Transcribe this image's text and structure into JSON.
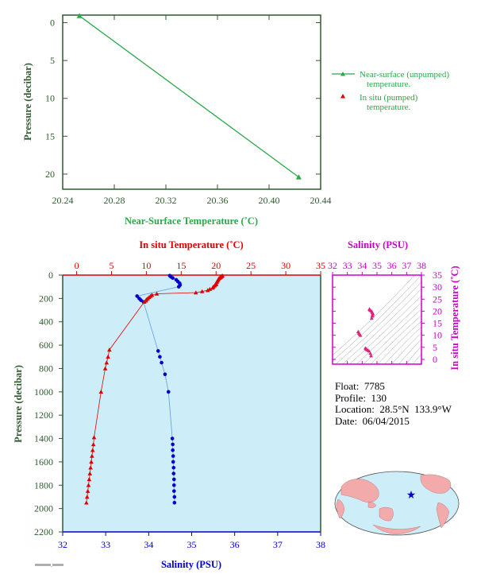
{
  "colors": {
    "green": "#2aa84a",
    "red": "#e00000",
    "blue": "#0000cc",
    "magenta": "#cc00cc",
    "darkgreen": "#2f5a2f",
    "panel_bg": "#cdeef8",
    "map_land": "#f2aaaa",
    "map_ocean": "#cdeef8"
  },
  "info": {
    "float_label": "Float:",
    "float": "7785",
    "profile_label": "Profile:",
    "profile": "130",
    "location_label": "Location:",
    "location": "28.5°N  133.9°W",
    "date_label": "Date:",
    "date": "06/04/2015"
  },
  "footer_tiny": "0000000000_0000000",
  "chart_data": [
    {
      "type": "line",
      "xlabel": "Near-Surface Temperature (˚C)",
      "ylabel": "Pressure (decibar)",
      "xlim": [
        20.24,
        20.44
      ],
      "ylim": [
        22,
        -1
      ],
      "xticks": [
        "20.24",
        "20.28",
        "20.32",
        "20.36",
        "20.40",
        "20.44"
      ],
      "yticks": [
        "0",
        "5",
        "10",
        "15",
        "20"
      ],
      "legend_position": "right",
      "series": [
        {
          "name": "Near-surface (unpumped) temperature.",
          "x": [
            20.253,
            20.423
          ],
          "y": [
            -0.9,
            20.4
          ]
        },
        {
          "name": "In situ (pumped) temperature.",
          "x": [],
          "y": []
        }
      ]
    },
    {
      "type": "scatter",
      "top_xlabel": "In situ Temperature (˚C)",
      "bottom_xlabel": "Salinity (PSU)",
      "ylabel": "Pressure (decibar)",
      "temp_lim": [
        -2,
        35
      ],
      "sal_lim": [
        32,
        38
      ],
      "pres_lim": [
        2200,
        0
      ],
      "temp_ticks": [
        "0",
        "5",
        "10",
        "15",
        "20",
        "25",
        "30",
        "35"
      ],
      "sal_ticks": [
        "32",
        "33",
        "34",
        "35",
        "36",
        "37",
        "38"
      ],
      "pres_ticks": [
        "0",
        "200",
        "400",
        "600",
        "800",
        "1000",
        "1200",
        "1400",
        "1600",
        "1800",
        "2000",
        "2200"
      ],
      "temperature": {
        "pressure": [
          5,
          10,
          15,
          20,
          25,
          30,
          40,
          50,
          60,
          70,
          80,
          90,
          100,
          110,
          120,
          130,
          140,
          150,
          160,
          170,
          180,
          190,
          200,
          210,
          220,
          230,
          640,
          700,
          750,
          800,
          1000,
          1390,
          1450,
          1500,
          1550,
          1600,
          1650,
          1700,
          1750,
          1800,
          1850,
          1900,
          1950
        ],
        "value": [
          20.9,
          20.8,
          20.7,
          20.6,
          20.5,
          20.4,
          20.3,
          20.2,
          20.1,
          20.0,
          20.0,
          19.8,
          19.6,
          19.5,
          19.1,
          18.8,
          18.0,
          17.1,
          11.5,
          10.8,
          10.6,
          10.4,
          10.2,
          10.0,
          9.9,
          9.7,
          4.7,
          4.5,
          4.3,
          4.1,
          3.5,
          2.5,
          2.4,
          2.3,
          2.2,
          2.1,
          2.0,
          1.9,
          1.8,
          1.7,
          1.6,
          1.5,
          1.4
        ]
      },
      "salinity": {
        "pressure": [
          5,
          15,
          25,
          40,
          55,
          70,
          85,
          100,
          180,
          200,
          215,
          230,
          650,
          700,
          750,
          850,
          1000,
          1400,
          1450,
          1500,
          1550,
          1600,
          1650,
          1700,
          1750,
          1800,
          1850,
          1900,
          1950
        ],
        "value": [
          34.49,
          34.52,
          34.56,
          34.64,
          34.68,
          34.72,
          34.73,
          34.7,
          33.73,
          33.78,
          33.82,
          33.88,
          34.22,
          34.26,
          34.3,
          34.38,
          34.46,
          34.55,
          34.56,
          34.56,
          34.57,
          34.57,
          34.58,
          34.58,
          34.59,
          34.59,
          34.59,
          34.6,
          34.6
        ]
      }
    },
    {
      "type": "scatter",
      "top_xlabel": "Salinity (PSU)",
      "ylabel": "In situ Temperature (˚C)",
      "xlim": [
        32,
        38
      ],
      "ylim": [
        -2,
        35
      ],
      "xticks": [
        "32",
        "33",
        "34",
        "35",
        "36",
        "37",
        "38"
      ],
      "yticks": [
        "0",
        "5",
        "10",
        "15",
        "20",
        "25",
        "30",
        "35"
      ],
      "salinity": [
        34.49,
        34.52,
        34.56,
        34.64,
        34.68,
        34.72,
        34.7,
        34.68,
        34.64,
        33.73,
        33.78,
        33.82,
        33.88,
        34.22,
        34.26,
        34.3,
        34.38,
        34.46,
        34.55,
        34.6
      ],
      "temperature": [
        20.9,
        20.6,
        20.3,
        20.0,
        19.5,
        19.0,
        18.5,
        18.0,
        17.1,
        11.5,
        11.0,
        10.5,
        10.0,
        4.7,
        4.4,
        4.1,
        3.8,
        3.5,
        2.5,
        1.5
      ]
    }
  ],
  "map": {
    "marker_lon": -133.9,
    "marker_lat": 28.5
  }
}
